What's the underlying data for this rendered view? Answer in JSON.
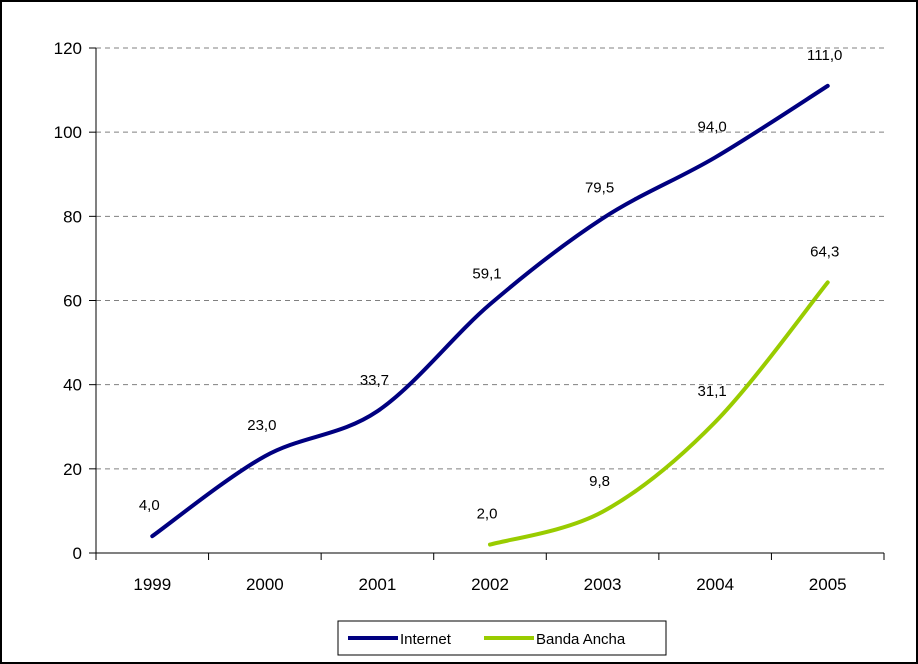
{
  "chart_data": {
    "type": "line",
    "title": "",
    "xlabel": "",
    "ylabel": "",
    "categories": [
      "1999",
      "2000",
      "2001",
      "2002",
      "2003",
      "2004",
      "2005"
    ],
    "ylim": [
      0,
      120
    ],
    "yticks": [
      0,
      20,
      40,
      60,
      80,
      100,
      120
    ],
    "grid": true,
    "legend_position": "bottom",
    "series": [
      {
        "name": "Internet",
        "color": "#000080",
        "values": [
          4.0,
          23.0,
          33.7,
          59.1,
          79.5,
          94.0,
          111.0
        ],
        "labels": [
          "4,0",
          "23,0",
          "33,7",
          "59,1",
          "79,5",
          "94,0",
          "111,0"
        ]
      },
      {
        "name": "Banda Ancha",
        "color": "#99cc00",
        "values": [
          null,
          null,
          null,
          2.0,
          9.8,
          31.1,
          64.3
        ],
        "labels": [
          "",
          "",
          "",
          "2,0",
          "9,8",
          "31,1",
          "64,3"
        ]
      }
    ]
  }
}
